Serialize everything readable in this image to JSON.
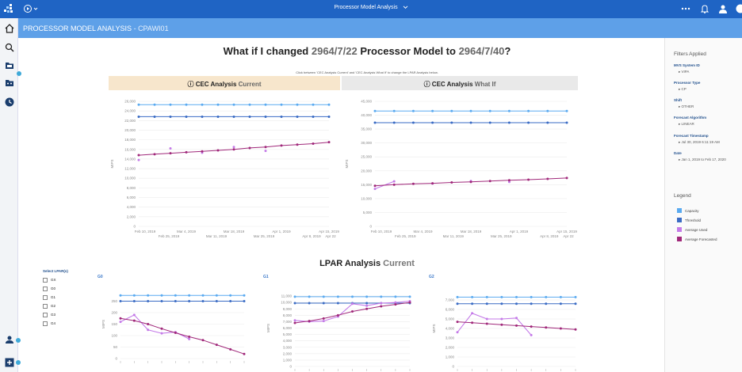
{
  "topbar": {
    "title": "Processor Model Analysis"
  },
  "header": {
    "title": "PROCESSOR MODEL ANALYSIS",
    "subtitle": "CPAWI01"
  },
  "main_title": {
    "prefix": "What if I changed ",
    "from": "2964/7/22",
    "middle": " Processor Model to ",
    "to": "2964/7/40",
    "suffix": "?"
  },
  "instructions": "Click between 'CEC Analysis Current' and 'CEC Analysis What If' to change the LPAR Analysis below.",
  "tabs": {
    "current": {
      "bold": "CEC Analysis",
      "light": "Current"
    },
    "whatif": {
      "bold": "CEC Analysis",
      "light": "What If"
    }
  },
  "filters": {
    "title": "Filters Applied",
    "groups": [
      {
        "label": "MVS System ID",
        "value": "VIPA"
      },
      {
        "label": "Processor Type",
        "value": "CP"
      },
      {
        "label": "Shift",
        "value": "OTHER"
      },
      {
        "label": "Forecast Algorithm",
        "value": "LINEAR"
      },
      {
        "label": "Forecast Timestamp",
        "value": "Jul 30, 2019 6:11:19 AM"
      },
      {
        "label": "Date",
        "value": "Jan 1, 2019 to Feb 17, 2020"
      }
    ]
  },
  "legend": {
    "title": "Legend",
    "items": [
      {
        "label": "Capacity",
        "color": "#5aaaf0"
      },
      {
        "label": "Threshold",
        "color": "#3a6bc4"
      },
      {
        "label": "Average Used",
        "color": "#c47ae8"
      },
      {
        "label": "Average Forecasted",
        "color": "#a0287a"
      }
    ]
  },
  "lpar": {
    "title_bold": "LPAR Analysis",
    "title_light": "Current",
    "select_label": "Select LPAR(s)",
    "options": [
      "GX",
      "G0",
      "G1",
      "G2",
      "G3",
      "G4"
    ],
    "chart_labels": [
      "G0",
      "G1",
      "G2"
    ]
  },
  "chart_data": [
    {
      "type": "line",
      "title": "CEC Analysis Current",
      "ylabel": "MIPS",
      "ylim": [
        0,
        26000
      ],
      "yticks": [
        "26,000",
        "24,000",
        "22,000",
        "20,000",
        "18,000",
        "16,000",
        "14,000",
        "12,000",
        "10,000",
        "8,000",
        "6,000",
        "4,000",
        "2,000",
        "0"
      ],
      "xticks_top": [
        "Feb 10, 2019",
        "Mar 4, 2019",
        "Mar 18, 2019",
        "Apr 1, 2019",
        "Apr 15, 2019"
      ],
      "xticks_bottom": [
        "Feb 25, 2019",
        "Mar 11, 2019",
        "Mar 25, 2019",
        "Apr 8, 2019",
        "Apr 22"
      ],
      "series": [
        {
          "name": "Capacity",
          "values": [
            25300,
            25300,
            25300,
            25300,
            25300,
            25300,
            25300,
            25300,
            25300,
            25300,
            25300,
            25300,
            25300
          ]
        },
        {
          "name": "Threshold",
          "values": [
            22800,
            22800,
            22800,
            22800,
            22800,
            22800,
            22800,
            22800,
            22800,
            22800,
            22800,
            22800,
            22800
          ]
        },
        {
          "name": "Average Used",
          "values": [
            13800,
            null,
            16200,
            null,
            15300,
            null,
            16500,
            null,
            15700,
            null,
            null,
            null,
            null
          ]
        },
        {
          "name": "Average Forecasted",
          "values": [
            14800,
            15000,
            15200,
            15400,
            15600,
            15800,
            16000,
            16300,
            16500,
            16800,
            17000,
            17200,
            17500
          ]
        }
      ]
    },
    {
      "type": "line",
      "title": "CEC Analysis What If",
      "ylabel": "MIPS",
      "ylim": [
        0,
        45000
      ],
      "yticks": [
        "45,000",
        "40,000",
        "35,000",
        "30,000",
        "25,000",
        "20,000",
        "15,000",
        "10,000",
        "5,000",
        "0"
      ],
      "xticks_top": [
        "Feb 10, 2019",
        "Mar 4, 2019",
        "Mar 18, 2019",
        "Apr 1, 2019",
        "Apr 15, 2019"
      ],
      "xticks_bottom": [
        "Feb 25, 2019",
        "Mar 11, 2019",
        "Mar 25, 2019",
        "Apr 8, 2019",
        "Apr 22"
      ],
      "series": [
        {
          "name": "Capacity",
          "values": [
            41500,
            41500,
            41500,
            41500,
            41500,
            41500,
            41500,
            41500,
            41500,
            41500,
            41500
          ]
        },
        {
          "name": "Threshold",
          "values": [
            37300,
            37300,
            37300,
            37300,
            37300,
            37300,
            37300,
            37300,
            37300,
            37300,
            37300
          ]
        },
        {
          "name": "Average Used",
          "values": [
            13500,
            16200,
            null,
            15400,
            null,
            16300,
            null,
            16000,
            null,
            null,
            null
          ]
        },
        {
          "name": "Average Forecasted",
          "values": [
            14600,
            15000,
            15300,
            15500,
            15800,
            16000,
            16300,
            16600,
            16800,
            17100,
            17400
          ]
        }
      ]
    },
    {
      "type": "line",
      "title": "G0",
      "ylabel": "MIPS",
      "ylim": [
        0,
        300
      ],
      "yticks": [
        "250",
        "200",
        "150",
        "100",
        "50",
        "0"
      ],
      "series": [
        {
          "name": "Capacity",
          "values": [
            275,
            275,
            275,
            275,
            275,
            275,
            275,
            275,
            275,
            275
          ]
        },
        {
          "name": "Threshold",
          "values": [
            250,
            250,
            250,
            250,
            250,
            250,
            250,
            250,
            250,
            250
          ]
        },
        {
          "name": "Average Used",
          "values": [
            160,
            190,
            125,
            110,
            115,
            85,
            null,
            null,
            null,
            null
          ]
        },
        {
          "name": "Average Forecasted",
          "values": [
            175,
            165,
            150,
            130,
            112,
            95,
            80,
            60,
            40,
            20
          ]
        }
      ]
    },
    {
      "type": "line",
      "title": "G1",
      "ylabel": "MIPS",
      "ylim": [
        0,
        12000
      ],
      "yticks": [
        "11,000",
        "10,000",
        "9,000",
        "8,000",
        "7,000",
        "6,000",
        "5,000",
        "4,000",
        "3,000",
        "2,000",
        "1,000",
        "0"
      ],
      "series": [
        {
          "name": "Capacity",
          "values": [
            10900,
            10900,
            10900,
            10900,
            10900,
            10900,
            10900,
            10900,
            10900
          ]
        },
        {
          "name": "Threshold",
          "values": [
            9900,
            9900,
            9900,
            9900,
            9900,
            9900,
            9900,
            9900,
            9900
          ]
        },
        {
          "name": "Average Used",
          "values": [
            7200,
            7000,
            7100,
            7800,
            9800,
            9500,
            9900,
            10000,
            10200
          ]
        },
        {
          "name": "Average Forecasted",
          "values": [
            6800,
            7100,
            7500,
            8000,
            8600,
            9000,
            9400,
            9700,
            10000
          ]
        }
      ]
    },
    {
      "type": "line",
      "title": "G2",
      "ylabel": "MIPS",
      "ylim": [
        0,
        8000
      ],
      "yticks": [
        "7,000",
        "6,000",
        "5,000",
        "4,000",
        "3,000",
        "2,000",
        "1,000",
        "0"
      ],
      "series": [
        {
          "name": "Capacity",
          "values": [
            7300,
            7300,
            7300,
            7300,
            7300,
            7300,
            7300,
            7300,
            7300
          ]
        },
        {
          "name": "Threshold",
          "values": [
            6600,
            6600,
            6600,
            6600,
            6600,
            6600,
            6600,
            6600,
            6600
          ]
        },
        {
          "name": "Average Used",
          "values": [
            3600,
            5600,
            5000,
            5000,
            5100,
            3300,
            null,
            null,
            null
          ]
        },
        {
          "name": "Average Forecasted",
          "values": [
            4700,
            4600,
            4500,
            4400,
            4300,
            4200,
            4100,
            4000,
            3900
          ]
        }
      ]
    }
  ]
}
